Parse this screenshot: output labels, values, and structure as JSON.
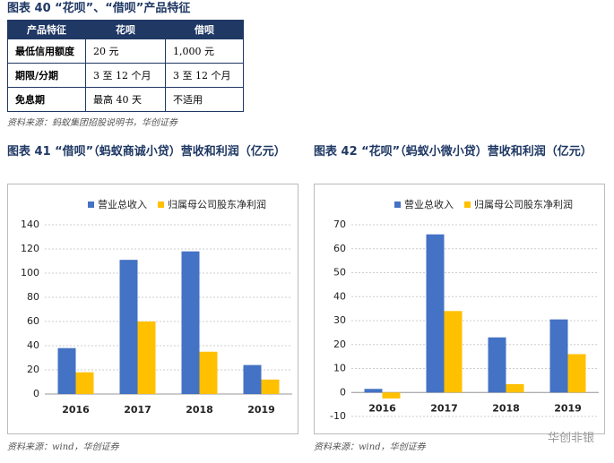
{
  "table": {
    "title": "图表 40 “花呗”、“借呗”产品特征",
    "header": [
      "产品特征",
      "花呗",
      "借呗"
    ],
    "rows": [
      [
        "最低信用额度",
        "20 元",
        "1,000 元"
      ],
      [
        "期限/分期",
        "3 至 12 个月",
        "3 至 12 个月"
      ],
      [
        "免息期",
        "最高 40 天",
        "不适用"
      ]
    ],
    "source": "资料来源：蚂蚁集团招股说明书，华创证券"
  },
  "chart_data": [
    {
      "type": "bar",
      "title": "图表 41 “借呗”（蚂蚁商诚小贷）营收和利润（亿元）",
      "source": "资料来源：wind，华创证券",
      "categories": [
        "2016",
        "2017",
        "2018",
        "2019"
      ],
      "series": [
        {
          "name": "营业总收入",
          "color": "#4472c4",
          "values": [
            38,
            111,
            118,
            24
          ]
        },
        {
          "name": "归属母公司股东净利润",
          "color": "#ffc000",
          "values": [
            18,
            60,
            35,
            12
          ]
        }
      ],
      "ylim": [
        0,
        140
      ],
      "yticks": [
        0,
        20,
        40,
        60,
        80,
        100,
        120,
        140
      ],
      "grid": true
    },
    {
      "type": "bar",
      "title": "图表 42 “花呗”（蚂蚁小微小贷）营收和利润（亿元）",
      "source": "资料来源：wind，华创证券",
      "categories": [
        "2016",
        "2017",
        "2018",
        "2019"
      ],
      "series": [
        {
          "name": "营业总收入",
          "color": "#4472c4",
          "values": [
            1.5,
            66,
            23,
            30.5
          ]
        },
        {
          "name": "归属母公司股东净利润",
          "color": "#ffc000",
          "values": [
            -2.5,
            34,
            3.5,
            16
          ]
        }
      ],
      "ylim": [
        -10,
        70
      ],
      "yticks": [
        -10,
        0,
        10,
        20,
        30,
        40,
        50,
        60,
        70
      ],
      "grid": true
    }
  ],
  "watermark": "华创非银"
}
